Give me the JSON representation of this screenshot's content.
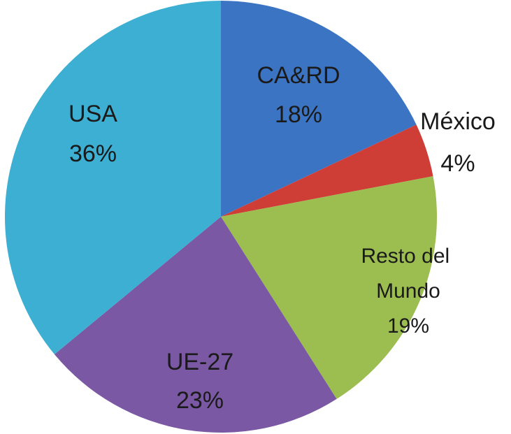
{
  "chart_data": {
    "type": "pie",
    "categories": [
      "CA&RD",
      "México",
      "Resto del Mundo",
      "UE-27",
      "USA"
    ],
    "values": [
      18,
      4,
      19,
      23,
      36
    ],
    "value_labels": [
      "18%",
      "4%",
      "19%",
      "23%",
      "36%"
    ],
    "colors": [
      "#3c74c4",
      "#cf3d37",
      "#9cbd4f",
      "#7a58a3",
      "#3cafd3"
    ]
  }
}
